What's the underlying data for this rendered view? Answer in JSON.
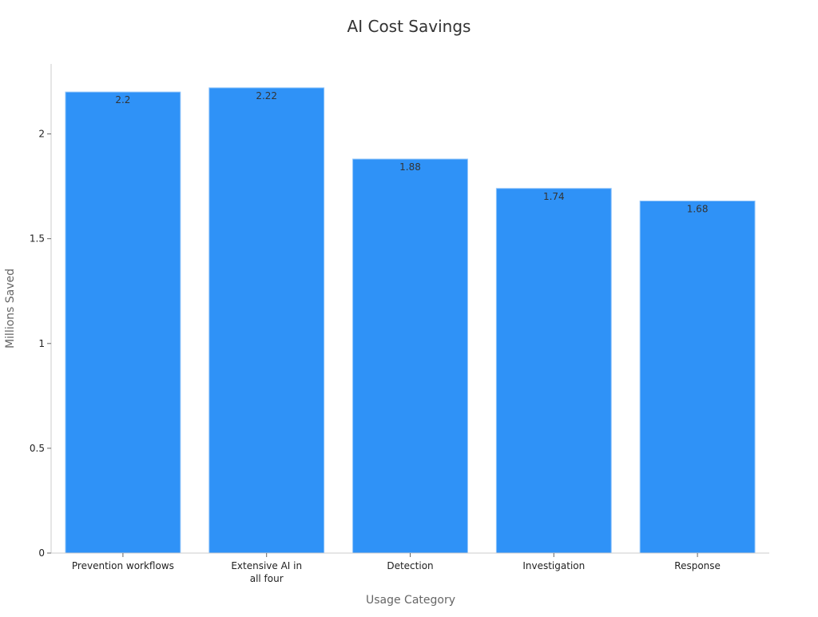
{
  "chart_data": {
    "type": "bar",
    "title": "AI Cost Savings",
    "xlabel": "Usage Category",
    "ylabel": "Millions Saved",
    "categories": [
      "Prevention workflows",
      "Extensive AI in all four",
      "Detection",
      "Investigation",
      "Response"
    ],
    "category_lines": [
      [
        "Prevention workflows"
      ],
      [
        "Extensive AI in",
        "all four"
      ],
      [
        "Detection"
      ],
      [
        "Investigation"
      ],
      [
        "Response"
      ]
    ],
    "values": [
      2.2,
      2.22,
      1.88,
      1.74,
      1.68
    ],
    "data_labels": [
      "2.2",
      "2.22",
      "1.88",
      "1.74",
      "1.68"
    ],
    "y_ticks": [
      0,
      0.5,
      1,
      1.5,
      2
    ],
    "y_tick_labels": [
      "0",
      "0.5",
      "1",
      "1.5",
      "2"
    ],
    "ylim": [
      0,
      2.334
    ],
    "grid": false,
    "legend": "none",
    "bar_color": "#2f92f7",
    "bar_edge_color": "#8fc4fa"
  }
}
